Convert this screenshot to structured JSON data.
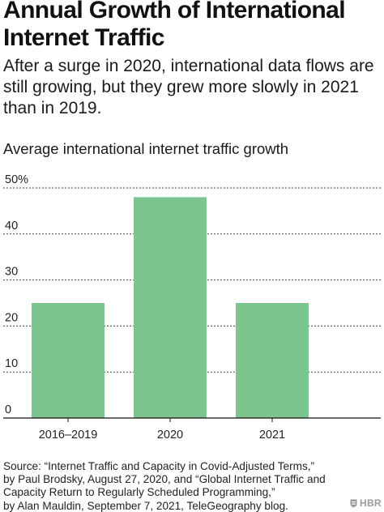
{
  "header": {
    "title": "Annual Growth of International Internet Traffic",
    "subtitle": "After a surge in 2020, international data flows are still growing, but they grew more slowly in 2021 than in 2019."
  },
  "chart_data": {
    "type": "bar",
    "title": "Average international internet traffic growth",
    "categories": [
      "2016–2019",
      "2020",
      "2021"
    ],
    "values": [
      25,
      48,
      25
    ],
    "ylim": [
      0,
      50
    ],
    "yticks": [
      "0",
      "10",
      "20",
      "30",
      "40",
      "50%"
    ],
    "xlabel": "",
    "ylabel": "",
    "grid": true,
    "bar_color": "#7cc58f"
  },
  "source": {
    "lines": [
      "Source: “Internet Traffic and Capacity in Covid-Adjusted Terms,”",
      "by Paul Brodsky, August 27, 2020, and “Global Internet Traffic and",
      "Capacity Return to Regularly Scheduled Programming,”",
      "by Alan Mauldin, September 7, 2021, TeleGeography blog."
    ]
  },
  "brand": {
    "logo_text": "HBR",
    "logo_icon": "shield-icon",
    "logo_color": "#9a9a9a"
  }
}
